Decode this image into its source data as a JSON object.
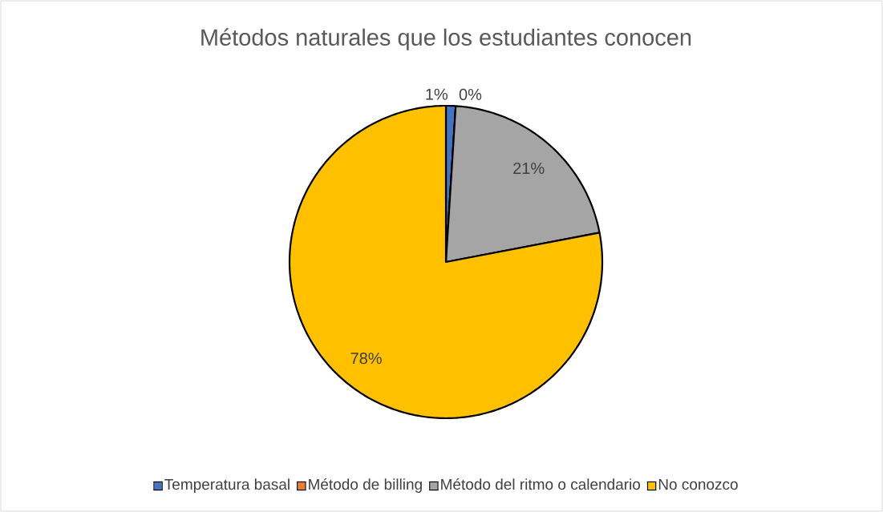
{
  "chart_data": {
    "type": "pie",
    "title": "Métodos naturales que los estudiantes conocen",
    "categories": [
      "Temperatura basal",
      "Método de billing",
      "Método del ritmo o calendario",
      "No conozco"
    ],
    "values": [
      1,
      0,
      21,
      78
    ],
    "colors": [
      "#4472c4",
      "#ed7d31",
      "#a5a5a5",
      "#ffc000"
    ],
    "value_labels": [
      "1%",
      "0%",
      "21%",
      "78%"
    ],
    "legend": "bottom"
  }
}
